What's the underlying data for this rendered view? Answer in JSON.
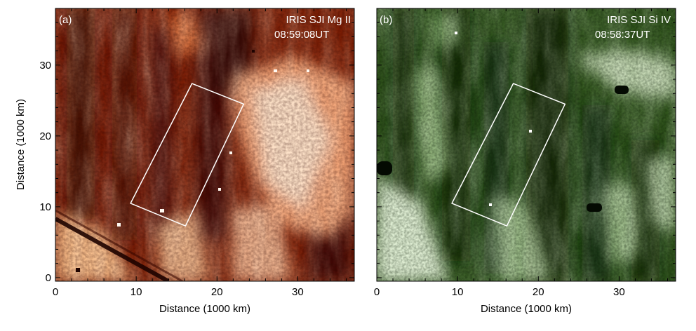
{
  "figure": {
    "panels": [
      {
        "id": "a",
        "letter": "(a)",
        "instrument": "IRIS SJI Mg II",
        "time": "08:59:08UT",
        "colormap": "red-temperature",
        "colors": {
          "dark": "#2a0600",
          "mid": "#b43000",
          "bright": "#fff4e6"
        },
        "xlabel": "Distance (1000 km)",
        "ylabel": "Distance (1000 km)",
        "xticks": [
          "0",
          "10",
          "20",
          "30"
        ],
        "yticks": [
          "0",
          "10",
          "20",
          "30"
        ],
        "xlim": [
          0,
          37
        ],
        "ylim": [
          -0.5,
          38
        ],
        "box_corners_data": [
          [
            9.3,
            10.5
          ],
          [
            16.1,
            7.3
          ],
          [
            23.3,
            24.5
          ],
          [
            16.9,
            27.4
          ]
        ]
      },
      {
        "id": "b",
        "letter": "(b)",
        "instrument": "IRIS SJI Si IV",
        "time": "08:58:37UT",
        "colormap": "green",
        "colors": {
          "dark": "#0c1e06",
          "mid": "#3c6e22",
          "bright": "#ffffff"
        },
        "xlabel": "Distance (1000 km)",
        "ylabel": "",
        "xticks": [
          "0",
          "10",
          "20",
          "30"
        ],
        "yticks": [],
        "xlim": [
          0,
          37
        ],
        "ylim": [
          -0.5,
          38
        ],
        "box_corners_data": [
          [
            9.3,
            10.5
          ],
          [
            16.1,
            7.3
          ],
          [
            23.3,
            24.5
          ],
          [
            16.9,
            27.4
          ]
        ]
      }
    ]
  }
}
